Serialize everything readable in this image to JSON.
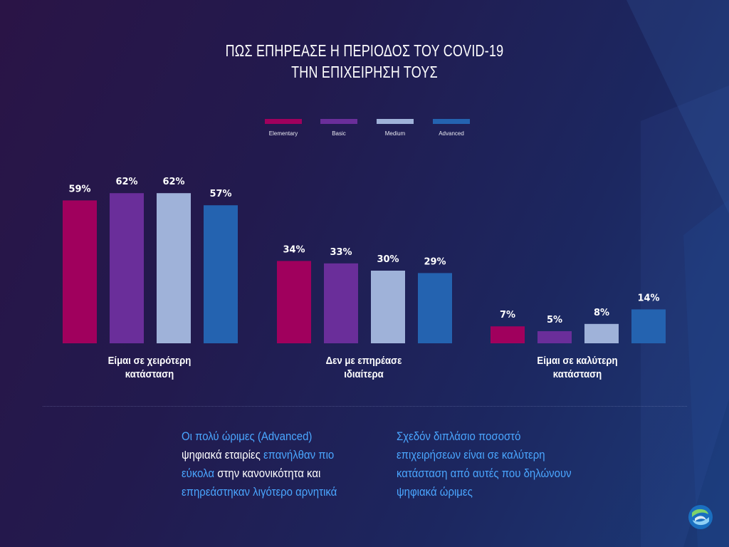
{
  "title_lines": [
    "ΠΩΣ ΕΠΗΡΕΑΣΕ Η ΠΕΡΙΟΔΟΣ ΤΟΥ COVID-19",
    "ΤΗΝ ΕΠΙΧΕΙΡΗΣΗ ΤΟΥΣ"
  ],
  "chart_data": {
    "type": "bar",
    "title": "ΠΩΣ ΕΠΗΡΕΑΣΕ Η ΠΕΡΙΟΔΟΣ ΤΟΥ COVID-19 ΤΗΝ ΕΠΙΧΕΙΡΗΣΗ ΤΟΥΣ",
    "categories": [
      "Είμαι σε χειρότερη κατάσταση",
      "Δεν με επηρέασε ιδιαίτερα",
      "Είμαι σε καλύτερη κατάσταση"
    ],
    "category_lines": [
      [
        "Είμαι σε χειρότερη",
        "κατάσταση"
      ],
      [
        "Δεν με επηρέασε",
        "ιδιαίτερα"
      ],
      [
        "Είμαι σε καλύτερη",
        "κατάσταση"
      ]
    ],
    "series": [
      {
        "name": "Elementary",
        "color": "#a0005d",
        "values": [
          59,
          34,
          7
        ]
      },
      {
        "name": "Basic",
        "color": "#6a2e9a",
        "values": [
          62,
          33,
          5
        ]
      },
      {
        "name": "Medium",
        "color": "#9fb2d9",
        "values": [
          62,
          30,
          8
        ]
      },
      {
        "name": "Advanced",
        "color": "#2463b0",
        "values": [
          57,
          29,
          14
        ]
      }
    ],
    "value_suffix": "%",
    "ylim": [
      0,
      70
    ],
    "legend_position": "top-center",
    "grid": false,
    "xlabel": "",
    "ylabel": ""
  },
  "notes": {
    "left": [
      {
        "text": "Οι πολύ ώριμες (Advanced)",
        "style": "hl"
      },
      {
        "text": "ψηφιακά εταιρίες ",
        "style": "wt"
      },
      {
        "text": "επανήλθαν πιο",
        "style": "hl"
      },
      {
        "text": "εύκολα",
        "style": "hl"
      },
      {
        "text": " στην κανονικότητα και",
        "style": "wt"
      },
      {
        "text": "επηρεάστηκαν λιγότερο αρνητικά",
        "style": "hl"
      }
    ],
    "left_lines": [
      [
        0
      ],
      [
        1,
        2
      ],
      [
        3,
        4
      ],
      [
        5
      ]
    ],
    "right_lines": [
      "Σχεδόν διπλάσιο ποσοστό",
      "επιχειρήσεων είναι σε καλύτερη",
      "κατάσταση από αυτές που δηλώνουν",
      "ψηφιακά ώριμες"
    ]
  },
  "logo_icon": "cosmote-logo-icon"
}
